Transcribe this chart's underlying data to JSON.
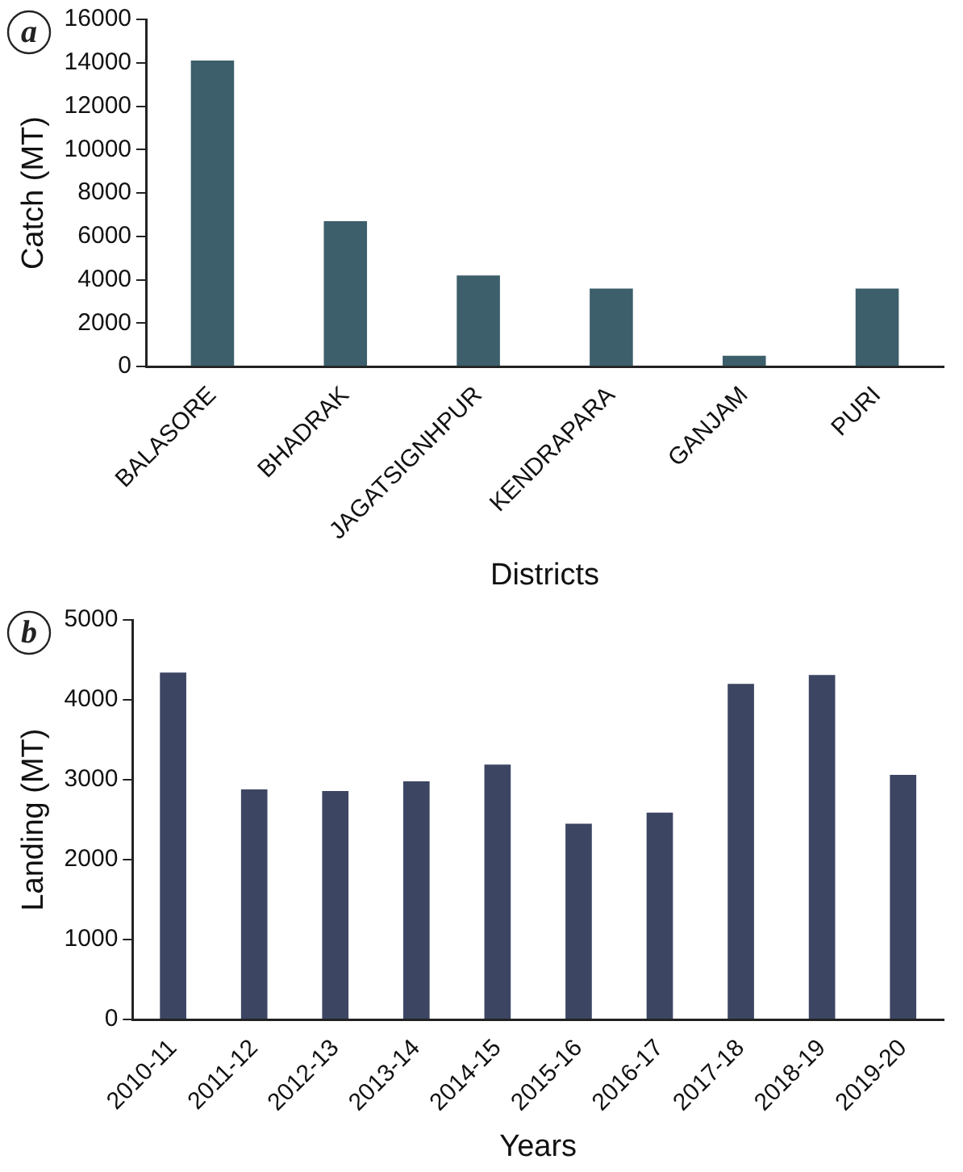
{
  "chart_data": [
    {
      "type": "bar",
      "xlabel": "Districts",
      "ylabel": "Catch (MT)",
      "annotations": [
        "a"
      ],
      "categories": [
        "BALASORE",
        "BHADRAK",
        "JAGATSIGNHPUR",
        "KENDRAPARA",
        "GANJAM",
        "PURI"
      ],
      "values": [
        14100,
        6700,
        4200,
        3600,
        500,
        3600
      ],
      "color": "#3d5f6b",
      "ylim": [
        0,
        16000
      ],
      "yticks": [
        0,
        2000,
        4000,
        6000,
        8000,
        10000,
        12000,
        14000,
        16000
      ],
      "grid": false,
      "legend": false
    },
    {
      "type": "bar",
      "xlabel": "Years",
      "ylabel": "Landing (MT)",
      "annotations": [
        "b"
      ],
      "categories": [
        "2010-11",
        "2011-12",
        "2012-13",
        "2013-14",
        "2014-15",
        "2015-16",
        "2016-17",
        "2017-18",
        "2018-19",
        "2019-20"
      ],
      "values": [
        4340,
        2880,
        2860,
        2980,
        3190,
        2450,
        2590,
        4200,
        4310,
        3060
      ],
      "color": "#3c4663",
      "ylim": [
        0,
        5000
      ],
      "yticks": [
        0,
        1000,
        2000,
        3000,
        4000,
        5000
      ],
      "grid": false,
      "legend": false
    }
  ]
}
